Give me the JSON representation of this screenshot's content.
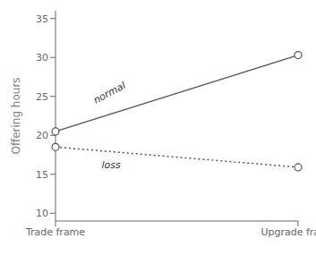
{
  "chart_data": {
    "type": "line",
    "categories": [
      "Trade frame",
      "Upgrade frame"
    ],
    "series": [
      {
        "name": "normal",
        "color": "#555555",
        "values": [
          20.5,
          30.3
        ],
        "line_style": "solid",
        "marker": "circle"
      },
      {
        "name": "loss",
        "color": "#555555",
        "values": [
          18.5,
          15.9
        ],
        "line_style": "dotted",
        "marker": "circle"
      }
    ],
    "ylabel": "Offering hours",
    "ylim": [
      9,
      36
    ],
    "yticks": [
      10,
      15,
      20,
      25,
      30,
      35
    ],
    "grid": false
  }
}
